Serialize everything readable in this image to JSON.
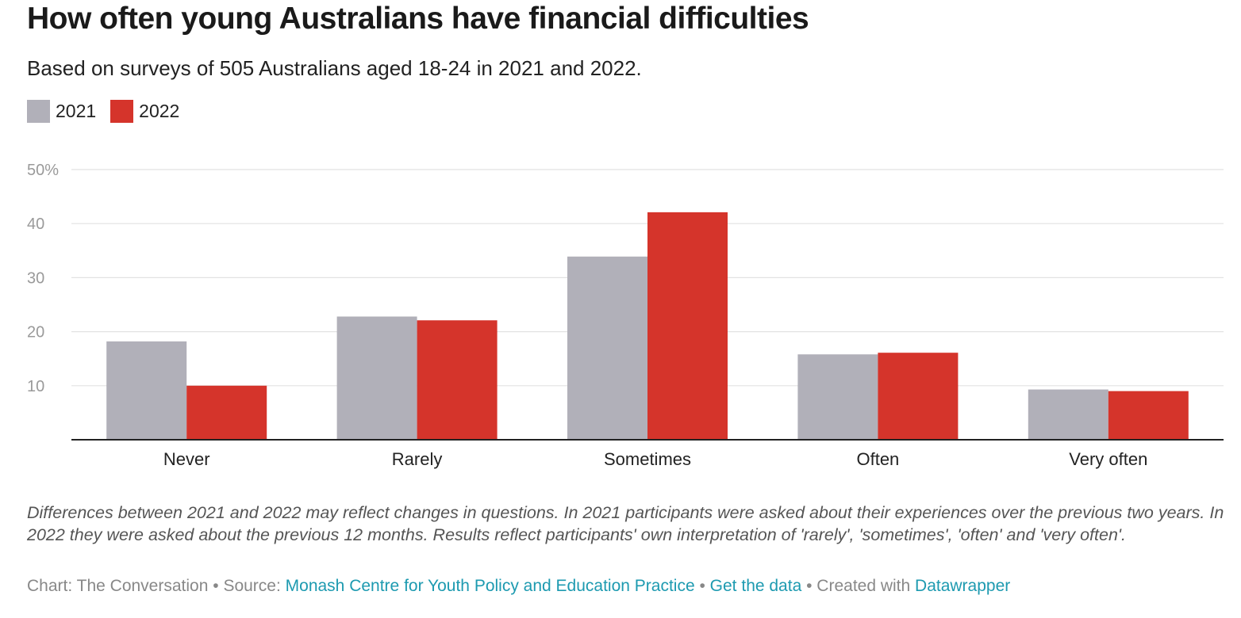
{
  "title": "How often young Australians have financial difficulties",
  "subtitle": "Based on surveys of 505 Australians aged 18-24 in 2021 and 2022.",
  "note": "Differences between 2021 and 2022 may reflect changes in questions. In 2021 participants were asked about their experiences over the previous two years. In 2022 they were asked about the previous 12 months. Results reflect participants' own interpretation of 'rarely', 'sometimes', 'often' and 'very often'.",
  "footer": {
    "chart_credit": "Chart: The Conversation",
    "sep": " • ",
    "source_label": "Source: ",
    "source_link": "Monash Centre for Youth Policy and Education Practice",
    "data_link": "Get the data",
    "created_label": "Created with ",
    "datawrapper_link": "Datawrapper"
  },
  "colors": {
    "y2021": "#b1b0b9",
    "y2022": "#d5342b",
    "grid": "#e2e2e2",
    "axis": "#222222"
  },
  "chart_data": {
    "type": "bar",
    "categories": [
      "Never",
      "Rarely",
      "Sometimes",
      "Often",
      "Very often"
    ],
    "series": [
      {
        "name": "2021",
        "values": [
          18.2,
          22.8,
          33.9,
          15.8,
          9.3
        ]
      },
      {
        "name": "2022",
        "values": [
          10.0,
          22.1,
          42.1,
          16.1,
          9.0
        ]
      }
    ],
    "ylim": [
      0,
      50
    ],
    "yticks": [
      10,
      20,
      30,
      40,
      50
    ],
    "ytick_labels": [
      "10",
      "20",
      "30",
      "40",
      "50%"
    ],
    "grid": true,
    "legend_position": "top-left"
  }
}
